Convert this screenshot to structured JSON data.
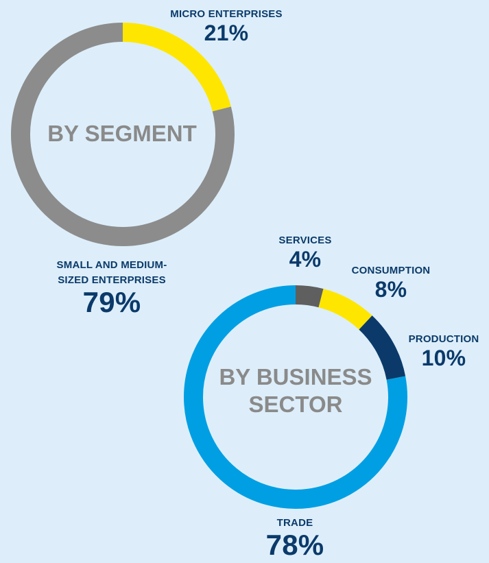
{
  "chart_data": [
    {
      "type": "pie",
      "title": "BY SEGMENT",
      "categories": [
        "MICRO ENTERPRISES",
        "SMALL AND MEDIUM-SIZED ENTERPRISES"
      ],
      "values": [
        21,
        79
      ],
      "value_labels": [
        "21%",
        "79%"
      ],
      "colors": [
        "#ffe600",
        "#8c8c8c"
      ]
    },
    {
      "type": "pie",
      "title": "BY BUSINESS SECTOR",
      "categories": [
        "SERVICES",
        "CONSUMPTION",
        "PRODUCTION",
        "TRADE"
      ],
      "values": [
        4,
        8,
        10,
        78
      ],
      "value_labels": [
        "4%",
        "8%",
        "10%",
        "78%"
      ],
      "colors": [
        "#5f5f5f",
        "#ffe600",
        "#0b3a6a",
        "#009fe3"
      ]
    }
  ],
  "labels": {
    "seg_center": "BY SEGMENT",
    "sector_center_line1": "BY BUSINESS",
    "sector_center_line2": "SECTOR",
    "micro_name": "MICRO ENTERPRISES",
    "micro_value": "21%",
    "sme_name_line1": "SMALL AND MEDIUM-",
    "sme_name_line2": "SIZED ENTERPRISES",
    "sme_value": "79%",
    "services_name": "SERVICES",
    "services_value": "4%",
    "consumption_name": "CONSUMPTION",
    "consumption_value": "8%",
    "production_name": "PRODUCTION",
    "production_value": "10%",
    "trade_name": "TRADE",
    "trade_value": "78%"
  }
}
